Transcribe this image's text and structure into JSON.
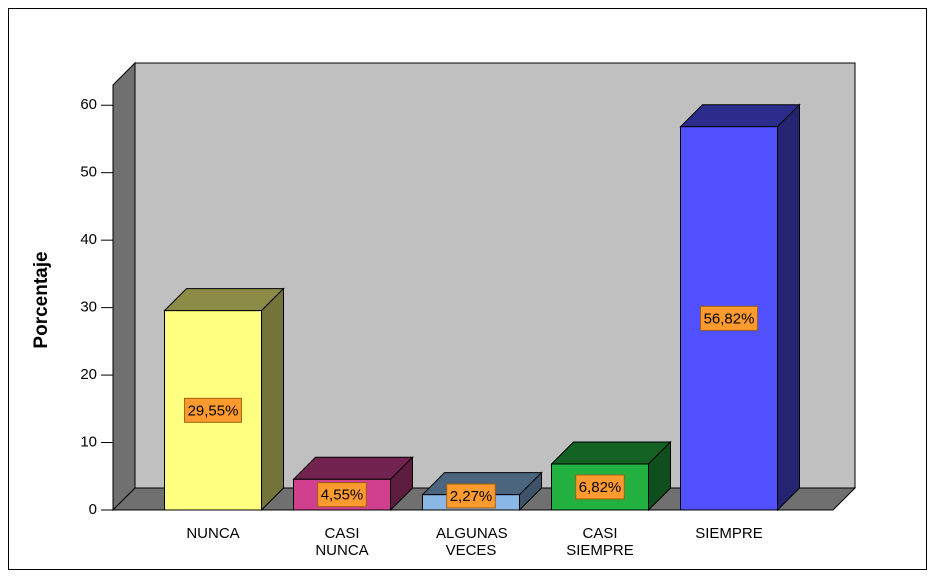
{
  "chart_data": {
    "type": "bar3d",
    "y_label": "Porcentaje",
    "categories": [
      "NUNCA",
      "CASI NUNCA",
      "ALGUNAS VECES",
      "CASI SIEMPRE",
      "SIEMPRE"
    ],
    "values": [
      29.55,
      4.55,
      2.27,
      6.82,
      56.82
    ],
    "value_labels": [
      "29,55%",
      "4,55%",
      "2,27%",
      "6,82%",
      "56,82%"
    ],
    "colors": [
      "#ffff80",
      "#d0408f",
      "#8ab8e6",
      "#22b040",
      "#5050ff"
    ],
    "label_color": "#ff9a2e",
    "ylim": [
      0,
      63
    ],
    "yticks": [
      0,
      10,
      20,
      30,
      40,
      50,
      60
    ]
  }
}
